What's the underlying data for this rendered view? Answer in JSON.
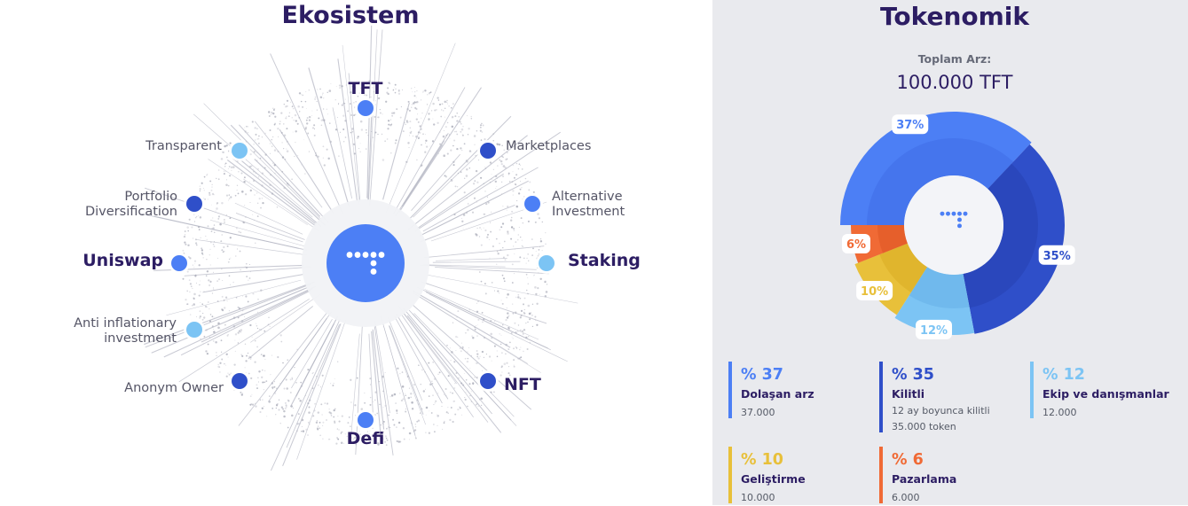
{
  "ecosystem": {
    "title": "Ekosistem",
    "center_icon": "tft-logo-icon",
    "nodes": [
      {
        "label": "TFT",
        "emphasis": true,
        "color": "#4c7ff5"
      },
      {
        "label": "Marketplaces",
        "emphasis": false,
        "color": "#2f4fc9"
      },
      {
        "label": "Alternative\nInvestment",
        "emphasis": false,
        "color": "#4c7ff5"
      },
      {
        "label": "Staking",
        "emphasis": true,
        "color": "#7cc4f4"
      },
      {
        "label": "NFT",
        "emphasis": true,
        "color": "#2f4fc9"
      },
      {
        "label": "Defi",
        "emphasis": true,
        "color": "#4c7ff5"
      },
      {
        "label": "Anonym Owner",
        "emphasis": false,
        "color": "#2f4fc9"
      },
      {
        "label": "Anti inflationary\ninvestment",
        "emphasis": false,
        "color": "#7cc4f4"
      },
      {
        "label": "Uniswap",
        "emphasis": true,
        "color": "#4c7ff5"
      },
      {
        "label": "Portfolio\nDiversification",
        "emphasis": false,
        "color": "#2f4fc9"
      },
      {
        "label": "Transparent",
        "emphasis": false,
        "color": "#7cc4f4"
      }
    ]
  },
  "tokenomics": {
    "title": "Tokenomik",
    "total_supply_label": "Toplam Arz:",
    "total_supply_value": "100.000 TFT",
    "center_icon": "tft-logo-icon"
  },
  "chart_data": {
    "type": "pie",
    "title": "Tokenomik",
    "slices": [
      {
        "name": "Dolaşan arz",
        "value": 37,
        "pct_label": "% 37",
        "chart_label": "37%",
        "amount": "37.000",
        "note": "",
        "color": "#4c7ff5",
        "dark": "#3f6ee6"
      },
      {
        "name": "Kilitli",
        "value": 35,
        "pct_label": "% 35",
        "chart_label": "35%",
        "amount": "35.000 token",
        "note": "12 ay boyunca kilitli",
        "color": "#2f4fc9",
        "dark": "#2742b0"
      },
      {
        "name": "Ekip ve danışmanlar",
        "value": 12,
        "pct_label": "% 12",
        "chart_label": "12%",
        "amount": "12.000",
        "note": "",
        "color": "#7cc4f4",
        "dark": "#66b1e8"
      },
      {
        "name": "Geliştirme",
        "value": 10,
        "pct_label": "% 10",
        "chart_label": "10%",
        "amount": "10.000",
        "note": "",
        "color": "#e8c03a",
        "dark": "#d9ab22"
      },
      {
        "name": "Pazarlama",
        "value": 6,
        "pct_label": "% 6",
        "chart_label": "6%",
        "amount": "6.000",
        "note": "",
        "color": "#f06a35",
        "dark": "#de5522"
      }
    ]
  }
}
